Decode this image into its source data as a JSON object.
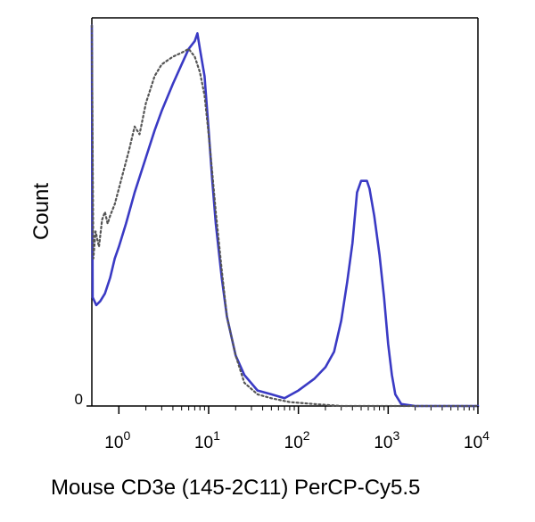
{
  "chart_data": {
    "type": "line",
    "title": "",
    "xlabel": "Mouse CD3e (145-2C11) PerCP-Cy5.5",
    "ylabel": "Count",
    "x_scale": "log",
    "xlim": [
      0.5,
      10000
    ],
    "ylim": [
      0,
      100
    ],
    "grid": false,
    "legend": "none",
    "x_ticks": [
      {
        "value": 1,
        "base": "10",
        "exp": "0"
      },
      {
        "value": 10,
        "base": "10",
        "exp": "1"
      },
      {
        "value": 100,
        "base": "10",
        "exp": "2"
      },
      {
        "value": 1000,
        "base": "10",
        "exp": "3"
      },
      {
        "value": 10000,
        "base": "10",
        "exp": "4"
      }
    ],
    "y_ticks": [
      {
        "value": 0,
        "label": "0"
      }
    ],
    "series": [
      {
        "style": "solid",
        "color": "#3a3ac4",
        "points": [
          [
            0.5,
            98
          ],
          [
            0.51,
            28
          ],
          [
            0.56,
            26
          ],
          [
            0.62,
            27
          ],
          [
            0.7,
            29
          ],
          [
            0.8,
            33
          ],
          [
            0.9,
            38
          ],
          [
            1.0,
            41
          ],
          [
            1.2,
            47
          ],
          [
            1.5,
            55
          ],
          [
            2.0,
            64
          ],
          [
            2.5,
            71
          ],
          [
            3.0,
            76
          ],
          [
            4.0,
            83
          ],
          [
            5.0,
            88
          ],
          [
            6.0,
            92
          ],
          [
            7.0,
            94
          ],
          [
            7.5,
            96
          ],
          [
            8.0,
            92
          ],
          [
            9.0,
            85
          ],
          [
            10,
            71
          ],
          [
            11,
            58
          ],
          [
            12,
            47
          ],
          [
            14,
            33
          ],
          [
            16,
            23
          ],
          [
            20,
            13
          ],
          [
            25,
            8
          ],
          [
            35,
            4
          ],
          [
            50,
            3
          ],
          [
            70,
            2
          ],
          [
            100,
            4
          ],
          [
            150,
            7
          ],
          [
            200,
            10
          ],
          [
            250,
            14
          ],
          [
            300,
            22
          ],
          [
            350,
            32
          ],
          [
            400,
            42
          ],
          [
            450,
            55
          ],
          [
            500,
            58
          ],
          [
            580,
            58
          ],
          [
            620,
            56
          ],
          [
            700,
            49
          ],
          [
            800,
            39
          ],
          [
            900,
            28
          ],
          [
            1000,
            16
          ],
          [
            1100,
            8
          ],
          [
            1200,
            3
          ],
          [
            1400,
            0.5
          ],
          [
            2000,
            0
          ],
          [
            10000,
            0
          ]
        ]
      },
      {
        "style": "dotted",
        "color": "#555555",
        "points": [
          [
            0.5,
            98
          ],
          [
            0.52,
            38
          ],
          [
            0.55,
            45
          ],
          [
            0.6,
            41
          ],
          [
            0.65,
            48
          ],
          [
            0.7,
            50
          ],
          [
            0.75,
            47
          ],
          [
            0.8,
            49
          ],
          [
            0.9,
            52
          ],
          [
            1.0,
            56
          ],
          [
            1.3,
            66
          ],
          [
            1.5,
            72
          ],
          [
            1.7,
            70
          ],
          [
            2.0,
            78
          ],
          [
            2.5,
            85
          ],
          [
            3.0,
            88
          ],
          [
            4.0,
            90
          ],
          [
            5.0,
            91
          ],
          [
            6.0,
            92
          ],
          [
            7.0,
            90
          ],
          [
            8.0,
            86
          ],
          [
            9.0,
            80
          ],
          [
            10,
            70
          ],
          [
            11,
            60
          ],
          [
            12,
            50
          ],
          [
            14,
            35
          ],
          [
            16,
            23
          ],
          [
            20,
            13
          ],
          [
            25,
            6
          ],
          [
            35,
            3
          ],
          [
            50,
            2
          ],
          [
            80,
            1
          ],
          [
            150,
            0.5
          ],
          [
            300,
            0
          ],
          [
            10000,
            0
          ]
        ]
      }
    ]
  }
}
